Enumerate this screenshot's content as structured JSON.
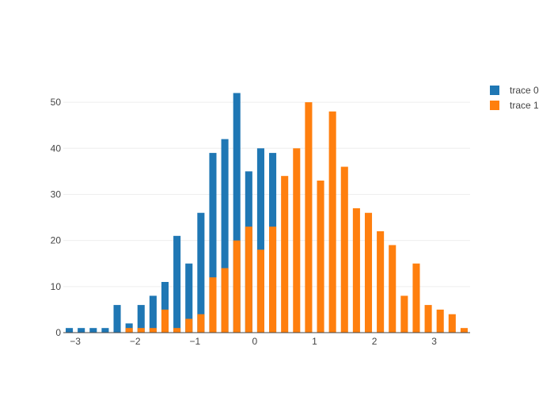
{
  "chart_data": {
    "type": "bar",
    "barmode": "overlay",
    "xlim": [
      -3.2,
      3.6
    ],
    "ylim": [
      0,
      55
    ],
    "x_ticks": [
      -3,
      -2,
      -1,
      0,
      1,
      2,
      3
    ],
    "x_tick_labels": [
      "−3",
      "−2",
      "−1",
      "0",
      "1",
      "2",
      "3"
    ],
    "y_ticks": [
      0,
      10,
      20,
      30,
      40,
      50
    ],
    "y_tick_labels": [
      "0",
      "10",
      "20",
      "30",
      "40",
      "50"
    ],
    "grid": true,
    "legend_position": "top-right",
    "series": [
      {
        "name": "trace 0",
        "color": "#1f77b4",
        "x": [
          -3.1,
          -2.9,
          -2.7,
          -2.5,
          -2.3,
          -2.1,
          -1.9,
          -1.7,
          -1.5,
          -1.3,
          -1.1,
          -0.9,
          -0.7,
          -0.5,
          -0.3,
          -0.1,
          0.1,
          0.3
        ],
        "values": [
          1,
          1,
          1,
          1,
          6,
          2,
          6,
          8,
          11,
          21,
          15,
          26,
          39,
          42,
          52,
          35,
          40,
          39
        ]
      },
      {
        "name": "trace 1",
        "color": "#ff7f0e",
        "x": [
          -2.1,
          -1.9,
          -1.7,
          -1.5,
          -1.3,
          -1.1,
          -0.9,
          -0.7,
          -0.5,
          -0.3,
          -0.1,
          0.1,
          0.3,
          0.5,
          0.7,
          0.9,
          1.1,
          1.3,
          1.5,
          1.7,
          1.9,
          2.1,
          2.3,
          2.5,
          2.7,
          2.9,
          3.1,
          3.3,
          3.5
        ],
        "values": [
          1,
          1,
          1,
          5,
          1,
          3,
          4,
          12,
          14,
          20,
          23,
          18,
          23,
          34,
          40,
          50,
          33,
          48,
          36,
          27,
          26,
          22,
          19,
          8,
          15,
          6,
          5,
          4,
          1
        ]
      }
    ]
  }
}
